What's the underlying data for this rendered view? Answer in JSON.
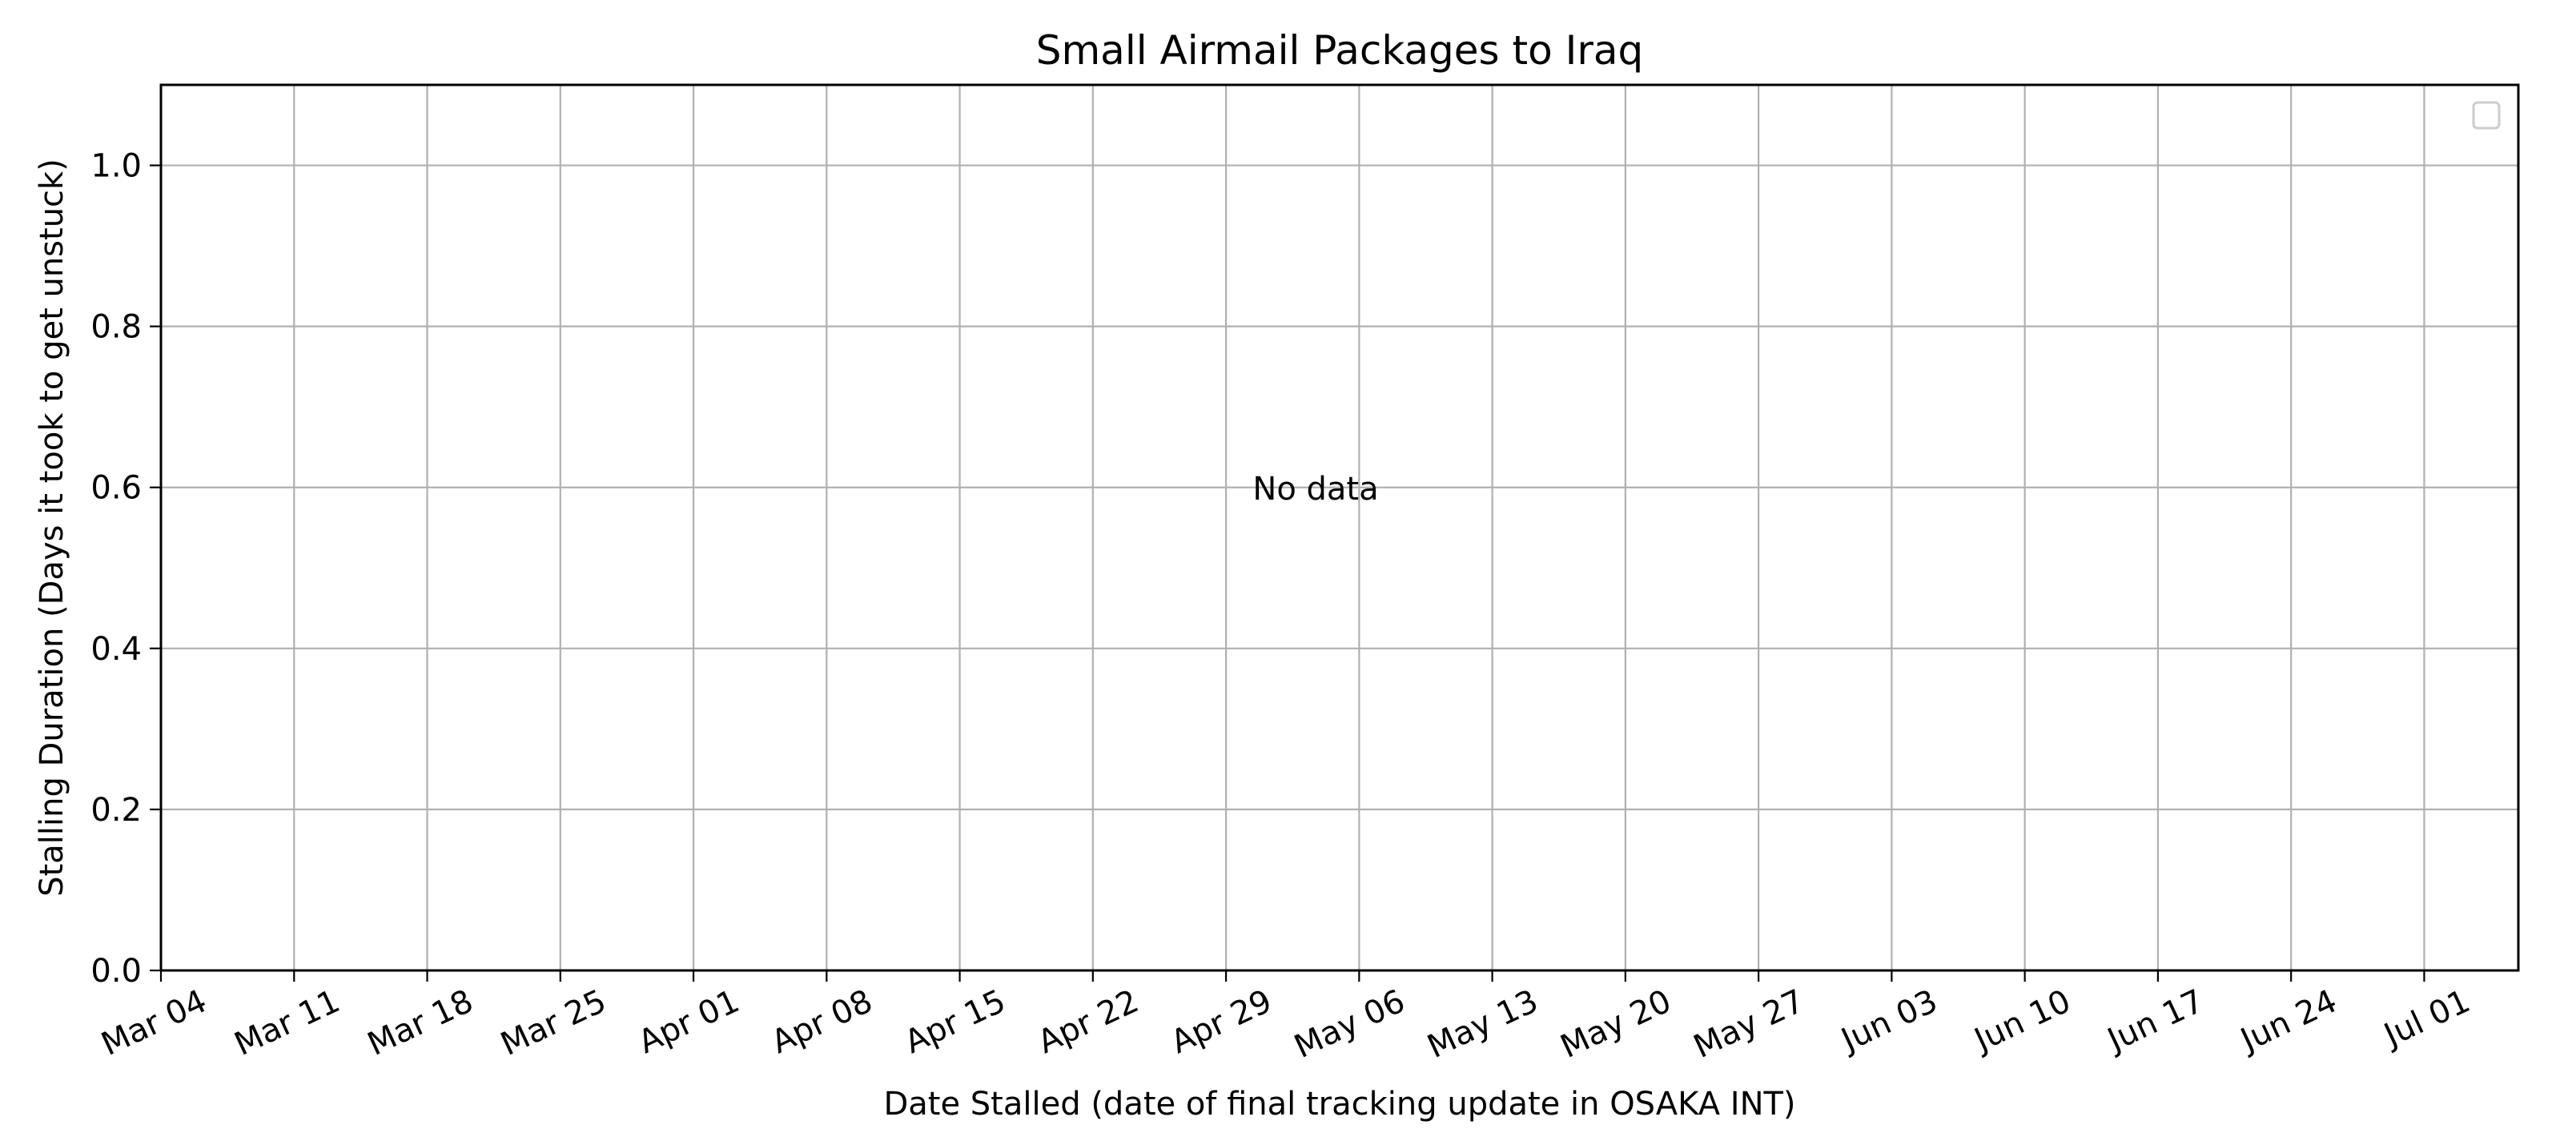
{
  "chart_data": {
    "type": "scatter",
    "title": "Small Airmail Packages to Iraq",
    "xlabel": "Date Stalled (date of final tracking update in OSAKA INT)",
    "ylabel": "Stalling Duration (Days it took to get unstuck)",
    "x_ticks": [
      "Mar 04",
      "Mar 11",
      "Mar 18",
      "Mar 25",
      "Apr 01",
      "Apr 08",
      "Apr 15",
      "Apr 22",
      "Apr 29",
      "May 06",
      "May 13",
      "May 20",
      "May 27",
      "Jun 03",
      "Jun 10",
      "Jun 17",
      "Jun 24",
      "Jul 01"
    ],
    "y_ticks": [
      "0.0",
      "0.2",
      "0.4",
      "0.6",
      "0.8",
      "1.0"
    ],
    "ylim": [
      0,
      1.1
    ],
    "grid": true,
    "legend": "top-right",
    "series": [],
    "annotation": "No data"
  }
}
